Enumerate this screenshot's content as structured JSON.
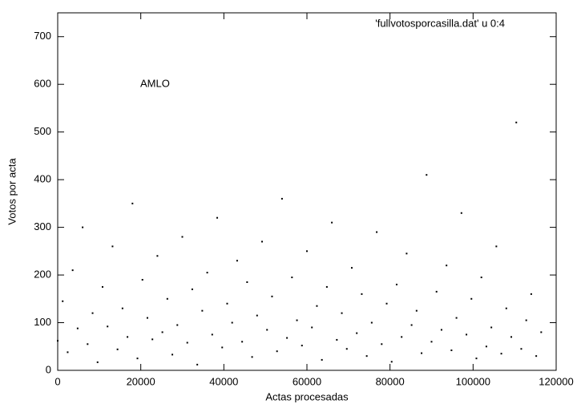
{
  "chart_data": {
    "type": "scatter",
    "xlabel": "Actas procesadas",
    "ylabel": "Votos por acta",
    "annotation": "AMLO",
    "xlim": [
      0,
      120000
    ],
    "ylim": [
      0,
      750
    ],
    "xticks": [
      0,
      20000,
      40000,
      60000,
      80000,
      100000,
      120000
    ],
    "yticks": [
      0,
      100,
      200,
      300,
      400,
      500,
      600,
      700
    ],
    "series": [
      {
        "name": "'fullvotosporcasilla.dat' u 0:4",
        "color": "#000000",
        "x": [
          0,
          1200,
          2400,
          3600,
          4800,
          6000,
          7200,
          8400,
          9600,
          10800,
          12000,
          13200,
          14400,
          15600,
          16800,
          18000,
          19200,
          20400,
          21600,
          22800,
          24000,
          25200,
          26400,
          27600,
          28800,
          30000,
          31200,
          32400,
          33600,
          34800,
          36000,
          37200,
          38400,
          39600,
          40800,
          42000,
          43200,
          44400,
          45600,
          46800,
          48000,
          49200,
          50400,
          51600,
          52800,
          54000,
          55200,
          56400,
          57600,
          58800,
          60000,
          61200,
          62400,
          63600,
          64800,
          66000,
          67200,
          68400,
          69600,
          70800,
          72000,
          73200,
          74400,
          75600,
          76800,
          78000,
          79200,
          80400,
          81600,
          82800,
          84000,
          85200,
          86400,
          87600,
          88800,
          90000,
          91200,
          92400,
          93600,
          94800,
          96000,
          97200,
          98400,
          99600,
          100800,
          102000,
          103200,
          104400,
          105600,
          106800,
          108000,
          109200,
          110400,
          111600,
          112800,
          114000,
          115200,
          116400
        ],
        "values": [
          62,
          145,
          38,
          210,
          88,
          300,
          55,
          120,
          17,
          175,
          92,
          260,
          44,
          130,
          70,
          350,
          25,
          190,
          110,
          65,
          240,
          80,
          150,
          33,
          95,
          280,
          58,
          170,
          12,
          125,
          205,
          75,
          320,
          48,
          140,
          100,
          230,
          60,
          185,
          28,
          115,
          270,
          85,
          155,
          40,
          360,
          68,
          195,
          105,
          52,
          250,
          90,
          135,
          22,
          175,
          310,
          64,
          120,
          45,
          215,
          78,
          160,
          30,
          100,
          290,
          55,
          140,
          18,
          180,
          70,
          245,
          95,
          125,
          36,
          410,
          60,
          165,
          85,
          220,
          42,
          110,
          330,
          75,
          150,
          25,
          195,
          50,
          90,
          260,
          35,
          130,
          70,
          520,
          45,
          105,
          160,
          30,
          80
        ]
      }
    ]
  }
}
